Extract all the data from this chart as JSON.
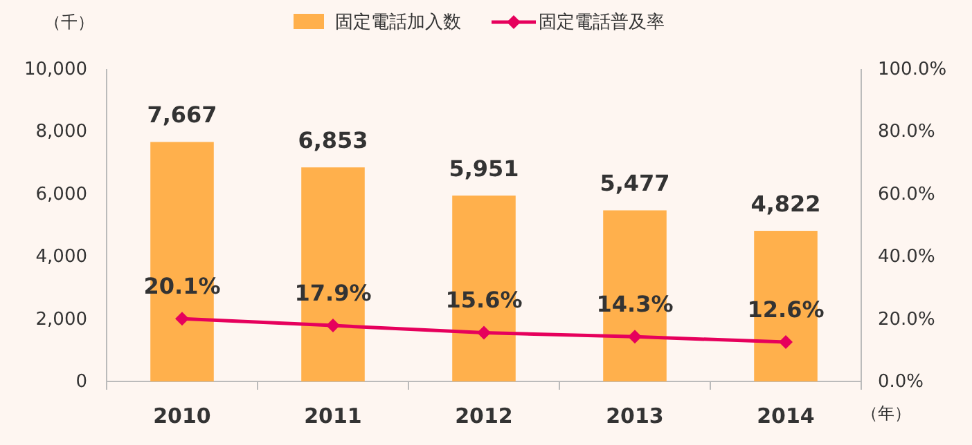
{
  "chart_data": {
    "type": "bar",
    "categories": [
      "2010",
      "2011",
      "2012",
      "2013",
      "2014"
    ],
    "series": [
      {
        "name": "固定電話加入数",
        "color": "#ffb04c",
        "values": [
          7667,
          6853,
          5951,
          5477,
          4822
        ],
        "value_labels": [
          "7,667",
          "6,853",
          "5,951",
          "5,477",
          "4,822"
        ]
      },
      {
        "name": "固定電話普及率",
        "type": "line",
        "axis": "y2",
        "color": "#e6005c",
        "marker": "diamond",
        "values": [
          20.1,
          17.9,
          15.6,
          14.3,
          12.6
        ],
        "value_labels": [
          "20.1%",
          "17.9%",
          "15.6%",
          "14.3%",
          "12.6%"
        ]
      }
    ],
    "ylabel": "（千）",
    "xlabel": "（年）",
    "legend": "top",
    "ylim": [
      0,
      10000
    ],
    "yticks": [
      {
        "value": 0,
        "label": "0"
      },
      {
        "value": 2000,
        "label": "2,000"
      },
      {
        "value": 4000,
        "label": "4,000"
      },
      {
        "value": 6000,
        "label": "6,000"
      },
      {
        "value": 8000,
        "label": "8,000"
      },
      {
        "value": 10000,
        "label": "10,000"
      }
    ],
    "y2lim": [
      0,
      100
    ],
    "y2ticks": [
      {
        "value": 0,
        "label": "0.0%"
      },
      {
        "value": 20,
        "label": "20.0%"
      },
      {
        "value": 40,
        "label": "40.0%"
      },
      {
        "value": 60,
        "label": "60.0%"
      },
      {
        "value": 80,
        "label": "80.0%"
      },
      {
        "value": 100,
        "label": "100.0%"
      }
    ]
  }
}
